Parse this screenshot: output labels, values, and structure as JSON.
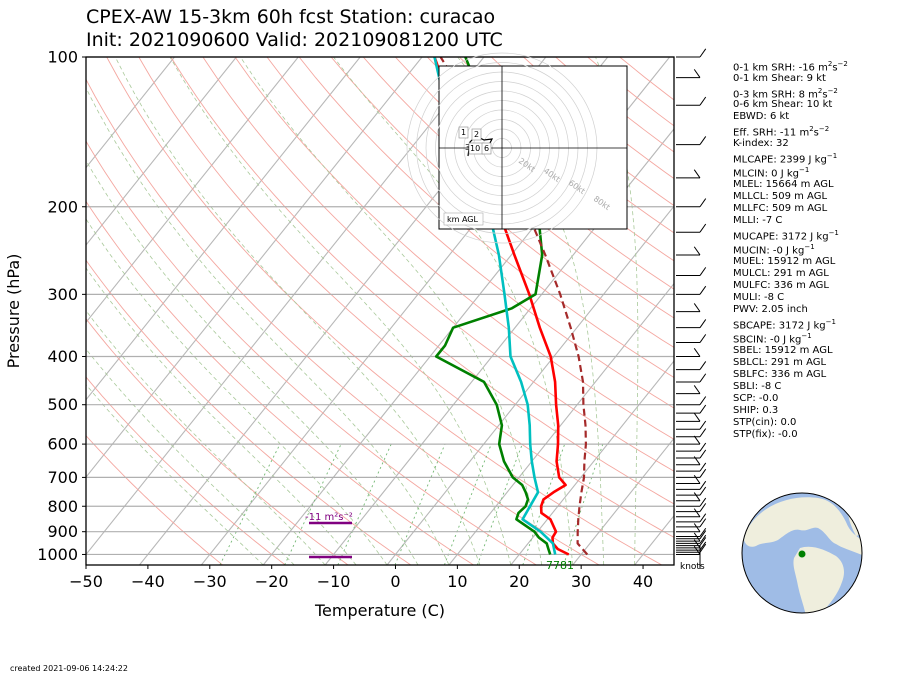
{
  "title": {
    "line1": "CPEX-AW 15-3km  60h fcst  Station: curacao",
    "line2": "Init: 2021090600  Valid: 2021090812​00 UTC"
  },
  "axes": {
    "xlabel": "Temperature (C)",
    "ylabel": "Pressure (hPa)",
    "xticks": [
      "−50",
      "−40",
      "−30",
      "−20",
      "−10",
      "0",
      "10",
      "20",
      "30",
      "40"
    ],
    "yticks": [
      "100",
      "200",
      "300",
      "400",
      "500",
      "600",
      "700",
      "800",
      "900",
      "1000"
    ]
  },
  "chart_data": {
    "type": "line",
    "title": "CPEX-AW 15-3km  60h fcst  Station: curacao",
    "xlabel": "Temperature (C)",
    "ylabel": "Pressure (hPa)",
    "xlim": [
      -50,
      45
    ],
    "ylim": [
      1050,
      100
    ],
    "y_scale": "log",
    "grid": true,
    "series": [
      {
        "name": "temperature",
        "color": "#ff0000",
        "points": [
          [
            1000,
            28
          ],
          [
            975,
            25.5
          ],
          [
            950,
            24
          ],
          [
            925,
            23.2
          ],
          [
            900,
            23
          ],
          [
            850,
            20.5
          ],
          [
            825,
            18.2
          ],
          [
            800,
            17.3
          ],
          [
            775,
            16.8
          ],
          [
            750,
            17.5
          ],
          [
            725,
            18.5
          ],
          [
            700,
            16.5
          ],
          [
            650,
            14
          ],
          [
            600,
            12
          ],
          [
            550,
            9.6
          ],
          [
            500,
            6.6
          ],
          [
            450,
            3.5
          ],
          [
            400,
            -0.5
          ],
          [
            350,
            -6
          ],
          [
            300,
            -12
          ],
          [
            250,
            -19.5
          ],
          [
            200,
            -28.5
          ],
          [
            175,
            -33.5
          ],
          [
            150,
            -41
          ],
          [
            125,
            -49
          ],
          [
            100,
            -58
          ]
        ]
      },
      {
        "name": "dewpoint",
        "color": "#008000",
        "points": [
          [
            1000,
            25
          ],
          [
            975,
            24
          ],
          [
            950,
            23
          ],
          [
            925,
            21
          ],
          [
            900,
            19.5
          ],
          [
            850,
            15
          ],
          [
            825,
            14.5
          ],
          [
            800,
            14.8
          ],
          [
            775,
            14.3
          ],
          [
            750,
            13
          ],
          [
            725,
            11.5
          ],
          [
            700,
            9
          ],
          [
            650,
            5.5
          ],
          [
            600,
            2.5
          ],
          [
            550,
            0.5
          ],
          [
            500,
            -3
          ],
          [
            450,
            -8
          ],
          [
            400,
            -19
          ],
          [
            380,
            -19
          ],
          [
            350,
            -20
          ],
          [
            320,
            -13
          ],
          [
            300,
            -11
          ],
          [
            250,
            -15
          ],
          [
            200,
            -22
          ],
          [
            175,
            -28
          ],
          [
            150,
            -36
          ],
          [
            125,
            -43
          ],
          [
            110,
            -49
          ],
          [
            100,
            -53
          ]
        ]
      },
      {
        "name": "wet_bulb",
        "color": "#00c0c0",
        "points": [
          [
            1000,
            25.8
          ],
          [
            950,
            24
          ],
          [
            900,
            20.5
          ],
          [
            850,
            16
          ],
          [
            800,
            15.5
          ],
          [
            750,
            15
          ],
          [
            700,
            12.5
          ],
          [
            650,
            10
          ],
          [
            600,
            7.5
          ],
          [
            550,
            5
          ],
          [
            500,
            2
          ],
          [
            450,
            -2
          ],
          [
            400,
            -7
          ],
          [
            350,
            -11
          ],
          [
            300,
            -16
          ],
          [
            250,
            -22
          ],
          [
            200,
            -30
          ],
          [
            150,
            -42
          ],
          [
            125,
            -50
          ],
          [
            100,
            -58
          ]
        ]
      },
      {
        "name": "parcel",
        "color": "#a52a2a",
        "dashed": true,
        "points": [
          [
            1000,
            31
          ],
          [
            950,
            28
          ],
          [
            900,
            26.5
          ],
          [
            850,
            25
          ],
          [
            800,
            23.5
          ],
          [
            750,
            22
          ],
          [
            700,
            20.5
          ],
          [
            650,
            18.5
          ],
          [
            600,
            16.5
          ],
          [
            550,
            14
          ],
          [
            500,
            11
          ],
          [
            450,
            8
          ],
          [
            400,
            4
          ],
          [
            350,
            -1
          ],
          [
            300,
            -7
          ],
          [
            250,
            -14.5
          ],
          [
            200,
            -24
          ],
          [
            150,
            -37
          ],
          [
            125,
            -46
          ],
          [
            100,
            -57
          ]
        ]
      }
    ],
    "annotations": {
      "srh_label": "-11 m²s⁻²",
      "surface_value": "7781",
      "knots_label": "knots"
    },
    "hodograph": {
      "rings": [
        "20kt",
        "40kt",
        "60kt",
        "80kt"
      ],
      "labels": [
        "1",
        "2",
        "3",
        "6",
        "10",
        "6"
      ],
      "corner_label": "km AGL"
    }
  },
  "params": [
    {
      "text": "0-1 km SRH: -16 m",
      "sup": "2",
      "mid": "s",
      "sup2": "−2"
    },
    {
      "text": "0-1 km Shear: 9 kt"
    },
    {
      "text": "0-3 km SRH: 8 m",
      "sup": "2",
      "mid": "s",
      "sup2": "−2"
    },
    {
      "text": "0-6 km Shear: 10 kt"
    },
    {
      "text": "EBWD: 6 kt"
    },
    {
      "text": "Eff. SRH: -11 m",
      "sup": "2",
      "mid": "s",
      "sup2": "−2"
    },
    {
      "text": "K-index: 32"
    },
    {
      "text": "MLCAPE: 2399 J kg",
      "sup": "−1"
    },
    {
      "text": "MLCIN: 0 J kg",
      "sup": "−1"
    },
    {
      "text": "MLEL: 15664 m AGL"
    },
    {
      "text": "MLLCL: 509 m AGL"
    },
    {
      "text": "MLLFC: 509 m AGL"
    },
    {
      "text": "MLLI: -7 C"
    },
    {
      "text": "MUCAPE: 3172 J kg",
      "sup": "−1"
    },
    {
      "text": "MUCIN: -0 J kg",
      "sup": "−1"
    },
    {
      "text": "MUEL: 15912 m AGL"
    },
    {
      "text": "MULCL: 291 m AGL"
    },
    {
      "text": "MULFC: 336 m AGL"
    },
    {
      "text": "MULI: -8 C"
    },
    {
      "text": "PWV: 2.05 inch"
    },
    {
      "text": "SBCAPE: 3172 J kg",
      "sup": "−1"
    },
    {
      "text": "SBCIN: -0 J kg",
      "sup": "−1"
    },
    {
      "text": "SBEL: 15912 m AGL"
    },
    {
      "text": "SBLCL: 291 m AGL"
    },
    {
      "text": "SBLFC: 336 m AGL"
    },
    {
      "text": "SBLI: -8 C"
    },
    {
      "text": "SCP: -0.0"
    },
    {
      "text": "SHIP: 0.3"
    },
    {
      "text": "STP(cin): 0.0"
    },
    {
      "text": "STP(fix): -0.0"
    }
  ],
  "footer": "created 2021-09-06 14:24:22",
  "colors": {
    "temperature": "#ff0000",
    "dewpoint": "#008000",
    "wet_bulb": "#00c0c0",
    "parcel": "#a52a2a",
    "srh_bar": "#800080",
    "ocean": "#9fbce6",
    "land": "#efeedd"
  }
}
